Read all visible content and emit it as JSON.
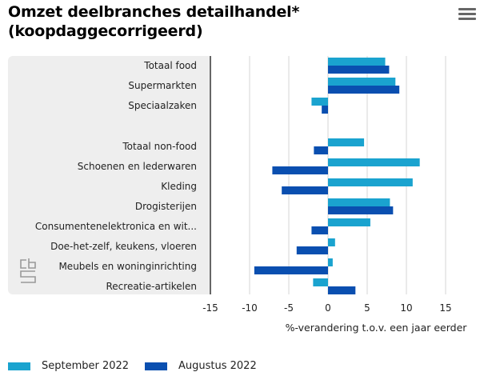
{
  "header": {
    "title_line1": "Omzet deelbranches detailhandel*",
    "title_line2": "(koopdaggecorrigeerd)",
    "menu_icon": "hamburger-menu-icon"
  },
  "logo": {
    "name": "cbs-logo",
    "text": "cbs"
  },
  "colors": {
    "september": "#1aa3cf",
    "augustus": "#0a4fb0",
    "grid": "#d6d6d6",
    "panel": "#eeeeee"
  },
  "chart_data": {
    "type": "bar",
    "orientation": "horizontal",
    "title": "Omzet deelbranches detailhandel* (koopdaggecorrigeerd)",
    "xlabel": "%-verandering t.o.v. een jaar eerder",
    "ylabel": "",
    "xlim": [
      -15,
      15
    ],
    "xticks": [
      -15,
      -10,
      -5,
      0,
      5,
      10,
      15
    ],
    "xtick_labels": [
      "-15",
      "-10",
      "-5",
      "0",
      "5",
      "10",
      "15"
    ],
    "grid": true,
    "legend_position": "bottom-left",
    "categories": [
      "Totaal food",
      "Supermarkten",
      "Speciaalzaken",
      "",
      "Totaal non-food",
      "Schoenen en lederwaren",
      "Kleding",
      "Drogisterijen",
      "Consumentenelektronica en wit...",
      "Doe-het-zelf, keukens, vloeren",
      "Meubels en woninginrichting",
      "Recreatie-artikelen"
    ],
    "series": [
      {
        "name": "September 2022",
        "values": [
          7.3,
          8.6,
          -2.1,
          null,
          4.6,
          11.7,
          10.8,
          7.9,
          5.4,
          0.9,
          0.6,
          -1.9
        ]
      },
      {
        "name": "Augustus 2022",
        "values": [
          7.8,
          9.1,
          -0.8,
          null,
          -1.8,
          -7.1,
          -5.9,
          8.3,
          -2.1,
          -4.0,
          -9.4,
          3.5
        ]
      }
    ]
  }
}
